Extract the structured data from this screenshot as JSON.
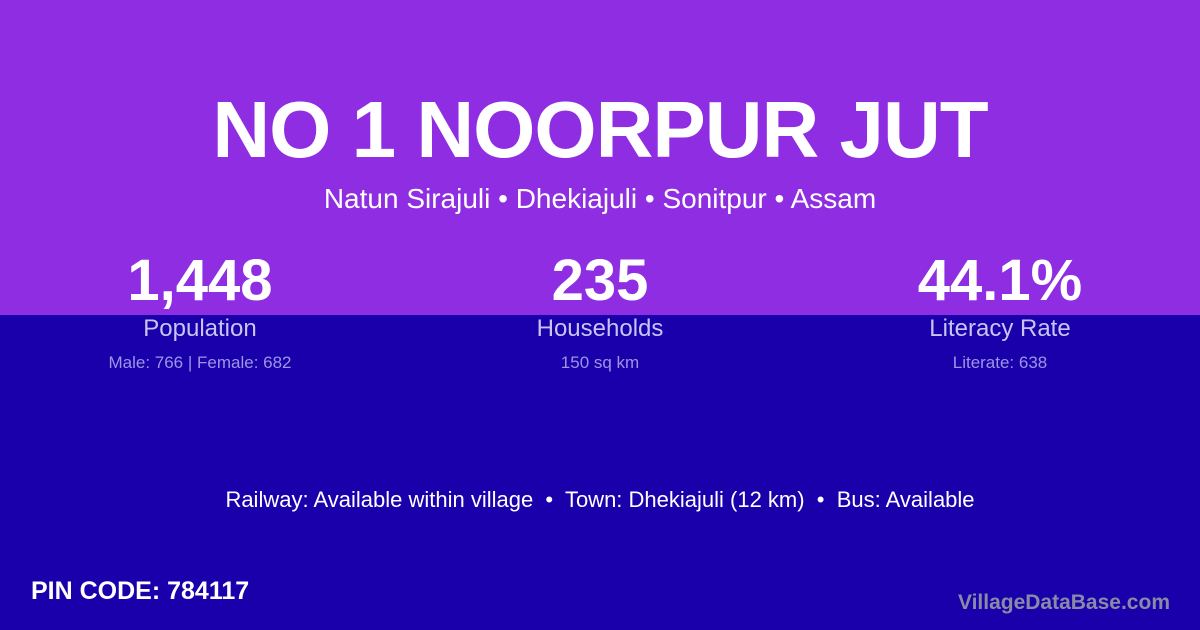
{
  "colors": {
    "top_background": "#8e2de2",
    "bottom_background": "#1a00aa",
    "text": "#ffffff",
    "label": "#c8c4f4",
    "sublabel": "#9d95e6",
    "brand": "#8a8aa8"
  },
  "title": "NO 1 NOORPUR JUT",
  "breadcrumb": "Natun Sirajuli • Dhekiajuli • Sonitpur • Assam",
  "stats": [
    {
      "value": "1,448",
      "label": "Population",
      "sub": "Male: 766 | Female: 682"
    },
    {
      "value": "235",
      "label": "Households",
      "sub": "150 sq km"
    },
    {
      "value": "44.1%",
      "label": "Literacy Rate",
      "sub": "Literate: 638"
    }
  ],
  "amenities": "Railway: Available within village  •  Town: Dhekiajuli (12 km)  •  Bus: Available",
  "pin_code": "PIN CODE: 784117",
  "brand": "VillageDataBase.com"
}
